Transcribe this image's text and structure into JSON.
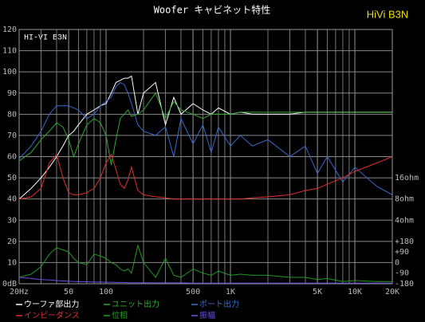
{
  "chart_data": {
    "type": "line",
    "title": "Woofer キャビネット特性",
    "brand": "HiVi B3N",
    "annotation": "HI-VI B3N",
    "x": [
      20,
      25,
      30,
      35,
      40,
      45,
      50,
      55,
      60,
      70,
      80,
      90,
      100,
      110,
      120,
      130,
      140,
      150,
      160,
      180,
      200,
      250,
      300,
      350,
      400,
      500,
      600,
      700,
      800,
      1000,
      1200,
      1500,
      2000,
      3000,
      4000,
      5000,
      6000,
      8000,
      10000,
      15000,
      20000
    ],
    "series": [
      {
        "name": "ウーファ部出力",
        "color": "#ffffff",
        "values": [
          40,
          45,
          50,
          55,
          60,
          65,
          70,
          72,
          75,
          80,
          82,
          84,
          85,
          90,
          95,
          96,
          97,
          97,
          98,
          80,
          90,
          95,
          75,
          88,
          80,
          85,
          82,
          80,
          83,
          80,
          81,
          80,
          80,
          80,
          81,
          81,
          81,
          81,
          81,
          81,
          81
        ]
      },
      {
        "name": "ユニット出力",
        "color": "#2fa82f",
        "values": [
          58,
          62,
          68,
          72,
          76,
          74,
          68,
          60,
          66,
          75,
          78,
          76,
          70,
          56,
          68,
          78,
          80,
          82,
          79,
          80,
          82,
          90,
          78,
          86,
          82,
          80,
          78,
          80,
          80,
          80,
          81,
          81,
          81,
          81,
          81,
          81,
          81,
          81,
          81,
          81,
          81
        ]
      },
      {
        "name": "ポート出力",
        "color": "#3a6ad0",
        "values": [
          59,
          65,
          72,
          80,
          84,
          84,
          84,
          83,
          82,
          78,
          80,
          84,
          86,
          88,
          93,
          95,
          94,
          90,
          85,
          75,
          72,
          70,
          74,
          60,
          78,
          66,
          75,
          62,
          74,
          65,
          70,
          65,
          68,
          60,
          65,
          52,
          60,
          48,
          55,
          46,
          42
        ]
      },
      {
        "name": "インピーダンス",
        "color": "#e03030",
        "values": [
          40,
          41,
          45,
          57,
          61,
          50,
          43,
          42,
          42,
          43,
          45,
          50,
          57,
          61,
          54,
          47,
          45,
          49,
          55,
          44,
          42,
          41,
          40.5,
          40,
          40,
          40,
          40,
          40,
          40,
          40,
          40,
          40.5,
          41,
          42,
          44,
          45,
          47,
          50,
          53,
          57,
          60
        ]
      },
      {
        "name": "位相",
        "color": "#1f9a1f",
        "values": [
          3,
          4.5,
          8,
          14,
          17,
          16,
          15,
          12,
          10,
          9,
          14,
          13,
          12,
          10,
          9,
          7,
          6,
          7,
          5,
          18,
          10,
          3,
          12,
          4,
          3,
          7,
          5,
          4,
          6,
          4,
          4.5,
          4,
          4,
          3,
          3,
          2,
          2.5,
          1,
          1.5,
          1,
          1
        ]
      },
      {
        "name": "振幅",
        "color": "#6a50e0",
        "values": [
          3,
          2.5,
          2,
          1.8,
          1.5,
          1.3,
          1.2,
          1,
          1,
          0.9,
          0.8,
          0.8,
          0.7,
          0.7,
          0.6,
          0.6,
          0.6,
          0.5,
          0.5,
          0.5,
          0.5,
          0.4,
          0.4,
          0.4,
          0.4,
          0.3,
          0.3,
          0.3,
          0.3,
          0.3,
          0.3,
          0.3,
          0.3,
          0.3,
          0.3,
          0.3,
          0.3,
          0.3,
          0.3,
          0.3,
          0.3
        ]
      }
    ],
    "xlim": [
      20,
      20000
    ],
    "ylim": [
      0,
      120
    ],
    "log_x": true,
    "grid": true,
    "xticks": [
      {
        "value": 20,
        "label": "20Hz"
      },
      50,
      100,
      500,
      {
        "value": 1000,
        "label": "1K"
      },
      {
        "value": 5000,
        "label": "5K"
      },
      {
        "value": 10000,
        "label": "10K"
      },
      {
        "value": 20000,
        "label": "20K"
      }
    ],
    "yticks": [
      {
        "value": 0,
        "label": "0dB"
      },
      10,
      20,
      30,
      40,
      50,
      60,
      70,
      80,
      90,
      100,
      110,
      120
    ],
    "y2lim": [
      0,
      120
    ],
    "y2ticks": [
      {
        "value": 50,
        "label": "16ohm"
      },
      {
        "value": 40,
        "label": "8ohm"
      },
      {
        "value": 30,
        "label": "4ohm"
      },
      {
        "value": 20,
        "label": "+180"
      },
      {
        "value": 15,
        "label": "+90"
      },
      {
        "value": 10,
        "label": "0"
      },
      {
        "value": 5,
        "label": "-90"
      },
      {
        "value": 0,
        "label": "-180"
      }
    ]
  }
}
